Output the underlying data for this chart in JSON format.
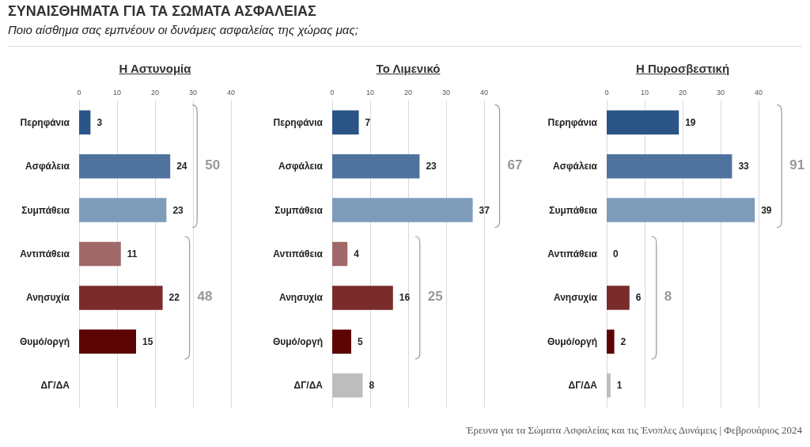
{
  "chart_data": [
    {
      "type": "other",
      "title": "ΣΥΝΑΙΣΘΗΜΑΤΑ ΓΙΑ ΤΑ ΣΩΜΑΤΑ ΑΣΦΑΛΕΙΑΣ",
      "subtitle": "Ποιο αίσθημα σας εμπνέουν οι δυνάμεις ασφαλείας της χώρας μας;",
      "annotations": [
        "Έρευνα για τα Σώματα Ασφαλείας και τις Ένοπλες Δυνάμεις | Φεβρουάριος 2024"
      ]
    },
    {
      "type": "bar",
      "orientation": "horizontal",
      "title": "Η Αστυνομία",
      "categories": [
        "Περηφάνια",
        "Ασφάλεια",
        "Συμπάθεια",
        "Αντιπάθεια",
        "Ανησυχία",
        "Θυμό/οργή",
        "ΔΓ/ΔΑ"
      ],
      "values": [
        3,
        24,
        23,
        11,
        22,
        15,
        null
      ],
      "colors": [
        "#2b5586",
        "#4f739d",
        "#7e9bba",
        "#a06868",
        "#7a2b2b",
        "#5c0404",
        "#bdbdbd"
      ],
      "xlim": [
        0,
        40
      ],
      "xticks": [
        0,
        10,
        20,
        30,
        40
      ],
      "grid": "x",
      "data_labels": true,
      "annotations": [
        "50",
        "48"
      ]
    },
    {
      "type": "bar",
      "orientation": "horizontal",
      "title": "Το Λιμενικό",
      "categories": [
        "Περηφάνια",
        "Ασφάλεια",
        "Συμπάθεια",
        "Αντιπάθεια",
        "Ανησυχία",
        "Θυμό/οργή",
        "ΔΓ/ΔΑ"
      ],
      "values": [
        7,
        23,
        37,
        4,
        16,
        5,
        8
      ],
      "colors": [
        "#2b5586",
        "#4f739d",
        "#7e9bba",
        "#a06868",
        "#7a2b2b",
        "#5c0404",
        "#bdbdbd"
      ],
      "xlim": [
        0,
        40
      ],
      "xticks": [
        0,
        10,
        20,
        30,
        40
      ],
      "grid": "x",
      "data_labels": true,
      "annotations": [
        "67",
        "25"
      ]
    },
    {
      "type": "bar",
      "orientation": "horizontal",
      "title": "Η Πυροσβεστική",
      "categories": [
        "Περηφάνια",
        "Ασφάλεια",
        "Συμπάθεια",
        "Αντιπάθεια",
        "Ανησυχία",
        "Θυμό/οργή",
        "ΔΓ/ΔΑ"
      ],
      "values": [
        19,
        33,
        39,
        0,
        6,
        2,
        1
      ],
      "colors": [
        "#2b5586",
        "#4f739d",
        "#7e9bba",
        "#a06868",
        "#7a2b2b",
        "#5c0404",
        "#bdbdbd"
      ],
      "xlim": [
        0,
        40
      ],
      "xticks": [
        0,
        10,
        20,
        30,
        40
      ],
      "grid": "x",
      "data_labels": true,
      "annotations": [
        "91",
        "8"
      ]
    }
  ]
}
